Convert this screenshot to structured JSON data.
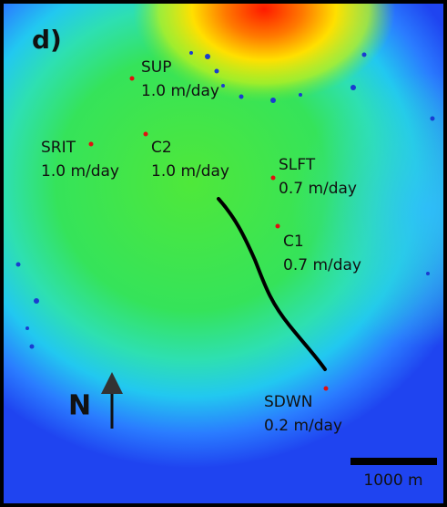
{
  "panel_label": "d)",
  "stations": [
    {
      "name": "SUP",
      "rate": "1.0 m/day"
    },
    {
      "name": "SRIT",
      "rate": "1.0 m/day"
    },
    {
      "name": "C2",
      "rate": "1.0 m/day"
    },
    {
      "name": "SLFT",
      "rate": "0.7 m/day"
    },
    {
      "name": "C1",
      "rate": "0.7 m/day"
    },
    {
      "name": "SDWN",
      "rate": "0.2 m/day"
    }
  ],
  "north_label": "N",
  "scale_bar_label": "1000 m"
}
